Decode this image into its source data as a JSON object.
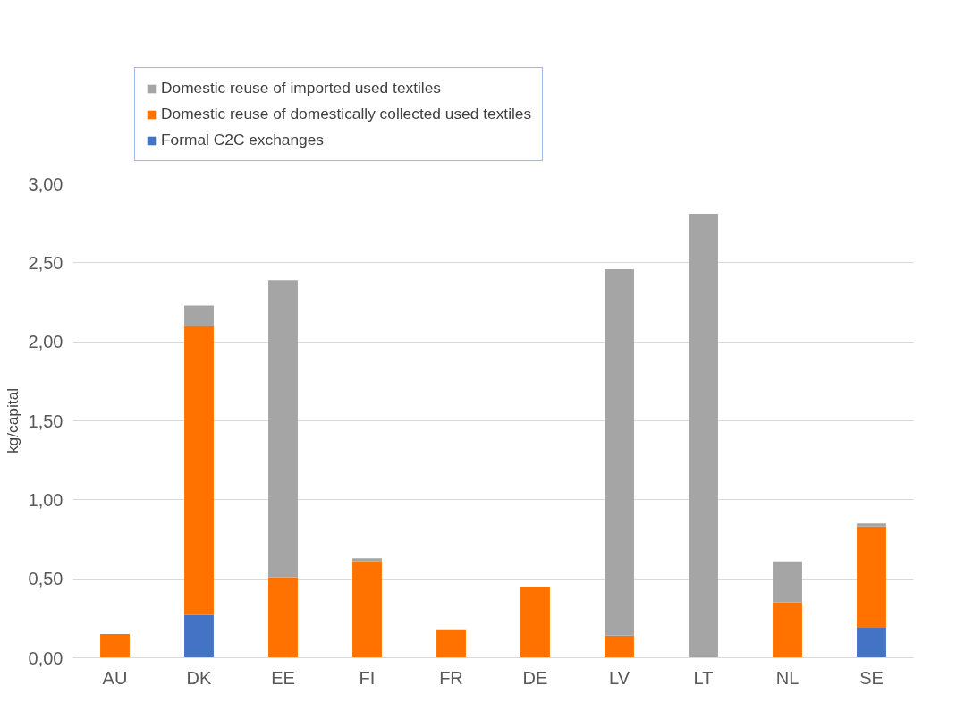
{
  "chart_data": {
    "type": "bar",
    "stacked": true,
    "ylabel": "kg/capital",
    "categories": [
      "AU",
      "DK",
      "EE",
      "FI",
      "FR",
      "DE",
      "LV",
      "LT",
      "NL",
      "SE"
    ],
    "series": [
      {
        "name": "Formal C2C exchanges",
        "color": "#4472c4",
        "values": [
          null,
          0.27,
          null,
          null,
          null,
          null,
          null,
          null,
          null,
          0.19
        ]
      },
      {
        "name": "Domestic reuse of domestically collected used textiles",
        "color": "#ff7200",
        "values": [
          0.15,
          1.83,
          0.51,
          0.61,
          0.18,
          0.45,
          0.14,
          null,
          0.35,
          0.64
        ]
      },
      {
        "name": "Domestic reuse of imported used textiles",
        "color": "#a5a5a5",
        "values": [
          null,
          0.13,
          1.88,
          0.02,
          null,
          null,
          2.32,
          2.81,
          0.26,
          0.02
        ]
      }
    ],
    "ylim": [
      0,
      3
    ],
    "yticks": [
      {
        "value": 0,
        "label": "0,00"
      },
      {
        "value": 0.5,
        "label": "0,50"
      },
      {
        "value": 1,
        "label": "1,00"
      },
      {
        "value": 1.5,
        "label": "1,50"
      },
      {
        "value": 2,
        "label": "2,00"
      },
      {
        "value": 2.5,
        "label": "2,50"
      },
      {
        "value": 3,
        "label": "3,00"
      }
    ],
    "grid": "y",
    "legend": "top left"
  }
}
